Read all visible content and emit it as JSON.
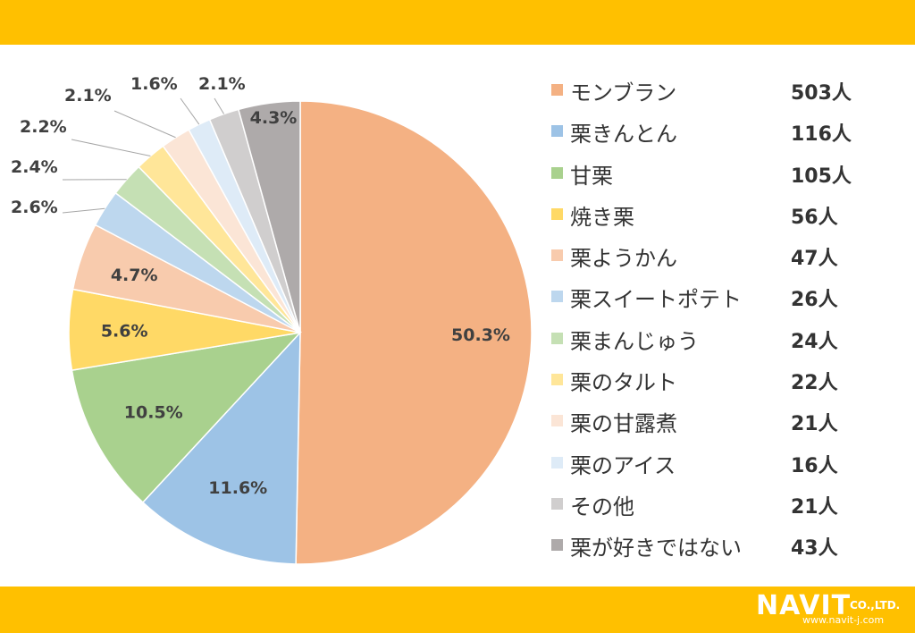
{
  "theme": {
    "band_color": "#FFC000"
  },
  "chart_data": {
    "type": "pie",
    "start_angle_deg": 0,
    "direction": "clockwise",
    "categories": [
      "モンブラン",
      "栗きんとん",
      "甘栗",
      "焼き栗",
      "栗ようかん",
      "栗スイートポテト",
      "栗まんじゅう",
      "栗のタルト",
      "栗の甘露煮",
      "栗のアイス",
      "その他",
      "栗が好きではない"
    ],
    "counts": [
      "503人",
      "116人",
      "105人",
      "56人",
      "47人",
      "26人",
      "24人",
      "22人",
      "21人",
      "16人",
      "21人",
      "43人"
    ],
    "values": [
      503,
      116,
      105,
      56,
      47,
      26,
      24,
      22,
      21,
      16,
      21,
      43
    ],
    "percent_labels": [
      "50.3%",
      "11.6%",
      "10.5%",
      "5.6%",
      "4.7%",
      "2.6%",
      "2.4%",
      "2.2%",
      "2.1%",
      "1.6%",
      "2.1%",
      "4.3%"
    ],
    "colors": [
      "#F4B183",
      "#9DC3E6",
      "#A9D18E",
      "#FFD966",
      "#F8CBAD",
      "#BDD7EE",
      "#C5E0B4",
      "#FFE699",
      "#FBE5D6",
      "#DEEBF7",
      "#D0CECE",
      "#AEAAAA"
    ],
    "legend_position": "right"
  },
  "logo": {
    "name": "NAVIT",
    "suffix": "CO.,LTD.",
    "url": "www.navit-j.com"
  }
}
